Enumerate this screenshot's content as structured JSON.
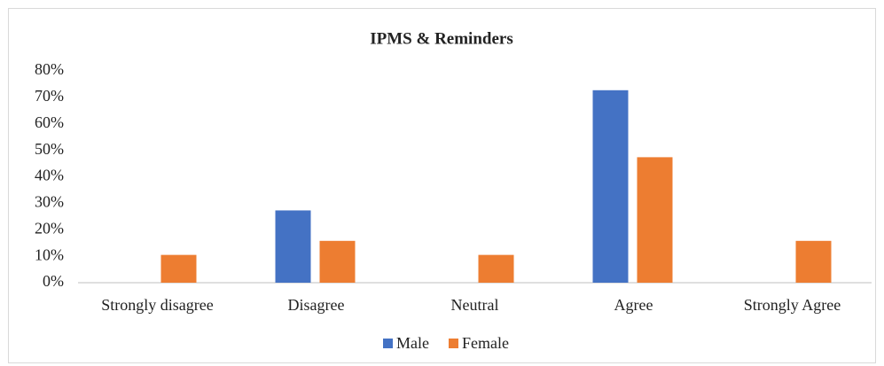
{
  "chart_data": {
    "type": "bar",
    "title": "IPMS & Reminders",
    "categories": [
      "Strongly disagree",
      "Disagree",
      "Neutral",
      "Agree",
      "Strongly Agree"
    ],
    "series": [
      {
        "name": "Male",
        "color": "#4472c4",
        "values": [
          0,
          27.3,
          0,
          72.7,
          0
        ]
      },
      {
        "name": "Female",
        "color": "#ed7d31",
        "values": [
          10.5,
          15.8,
          10.5,
          47.4,
          15.8
        ]
      }
    ],
    "ylim": [
      0,
      80
    ],
    "yticks": [
      {
        "value": 0,
        "label": "0%"
      },
      {
        "value": 10,
        "label": "10%"
      },
      {
        "value": 20,
        "label": "20%"
      },
      {
        "value": 30,
        "label": "30%"
      },
      {
        "value": 40,
        "label": "40%"
      },
      {
        "value": 50,
        "label": "50%"
      },
      {
        "value": 60,
        "label": "60%"
      },
      {
        "value": 70,
        "label": "70%"
      },
      {
        "value": 80,
        "label": "80%"
      }
    ],
    "grid": false,
    "legend": "bottom"
  }
}
